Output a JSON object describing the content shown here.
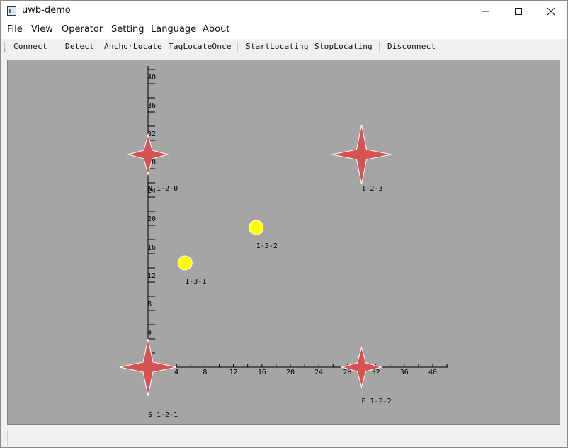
{
  "window": {
    "title": "uwb-demo"
  },
  "menubar": {
    "items": [
      "File",
      "View",
      "Operator",
      "Setting",
      "Language",
      "About"
    ]
  },
  "toolbar": {
    "buttons": [
      "Connect",
      "Detect",
      "AnchorLocate",
      "TagLocateOnce",
      "StartLocating",
      "StopLocating",
      "Disconnect"
    ]
  },
  "plot": {
    "x_ticks": [
      "4",
      "8",
      "12",
      "16",
      "20",
      "24",
      "28",
      "32",
      "36",
      "40"
    ],
    "y_ticks": [
      "4",
      "8",
      "12",
      "16",
      "20",
      "24",
      "28",
      "32",
      "36",
      "40"
    ],
    "anchors": [
      {
        "id": "1-2-0",
        "dir": "N",
        "x": 0,
        "y": 30
      },
      {
        "id": "1-2-1",
        "dir": "S",
        "x": 0,
        "y": 0
      },
      {
        "id": "1-2-2",
        "dir": "E",
        "x": 30,
        "y": 0
      },
      {
        "id": "1-2-3",
        "dir": "",
        "x": 30,
        "y": 30
      }
    ],
    "tags": [
      {
        "id": "1-3-1",
        "x": 5,
        "y": 15
      },
      {
        "id": "1-3-2",
        "x": 15,
        "y": 20
      }
    ]
  },
  "colors": {
    "canvas_bg": "#a5a5a5",
    "anchor": "#d65353",
    "tag": "#ffff00",
    "axis": "#000000"
  }
}
